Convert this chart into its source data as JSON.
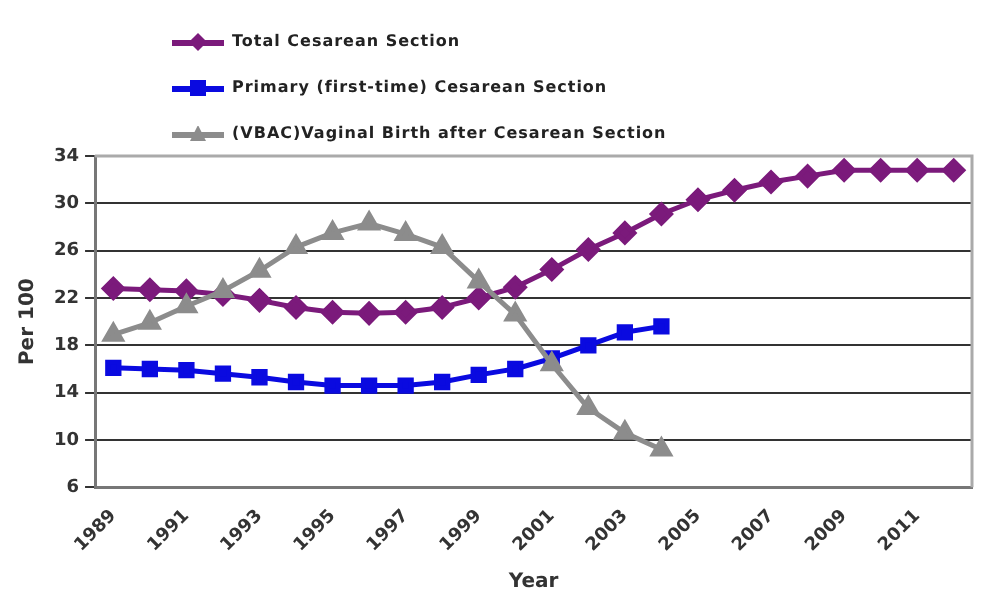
{
  "chart_data": {
    "type": "line",
    "xlabel": "Year",
    "ylabel": "Per 100",
    "categories": [
      "1989",
      null,
      "1991",
      null,
      "1993",
      null,
      "1995",
      null,
      "1997",
      null,
      "1999",
      null,
      "2001",
      null,
      "2003",
      null,
      "2005",
      null,
      "2007",
      null,
      "2009",
      null,
      "2011",
      null
    ],
    "series": [
      {
        "name": "Total Cesarean Section",
        "color": "#7b1a7b",
        "marker": "diamond",
        "values": [
          22.8,
          22.7,
          22.6,
          22.3,
          21.8,
          21.2,
          20.8,
          20.7,
          20.8,
          21.2,
          22.0,
          22.9,
          24.4,
          26.1,
          27.5,
          29.1,
          30.3,
          31.1,
          31.8,
          32.3,
          32.8,
          32.8,
          32.8,
          32.8
        ]
      },
      {
        "name": "Primary (first-time) Cesarean Section",
        "color": "#0a0ae0",
        "marker": "square",
        "values": [
          16.1,
          16.0,
          15.9,
          15.6,
          15.3,
          14.9,
          14.6,
          14.6,
          14.6,
          14.9,
          15.5,
          16.0,
          16.9,
          18.0,
          19.1,
          19.6,
          null,
          null,
          null,
          null,
          null,
          null,
          null,
          null
        ]
      },
      {
        "name": "(VBAC)Vaginal Birth after Cesarean Section",
        "color": "#8c8c8c",
        "marker": "triangle",
        "values": [
          18.9,
          19.9,
          21.3,
          22.6,
          24.3,
          26.3,
          27.5,
          28.3,
          27.4,
          26.3,
          23.4,
          20.6,
          16.4,
          12.7,
          10.6,
          9.2,
          null,
          null,
          null,
          null,
          null,
          null,
          null,
          null
        ]
      }
    ],
    "ylim": [
      6,
      34
    ],
    "yticks": [
      6,
      10,
      14,
      18,
      22,
      26,
      30,
      34
    ],
    "grid": "y",
    "legend": "top left"
  }
}
